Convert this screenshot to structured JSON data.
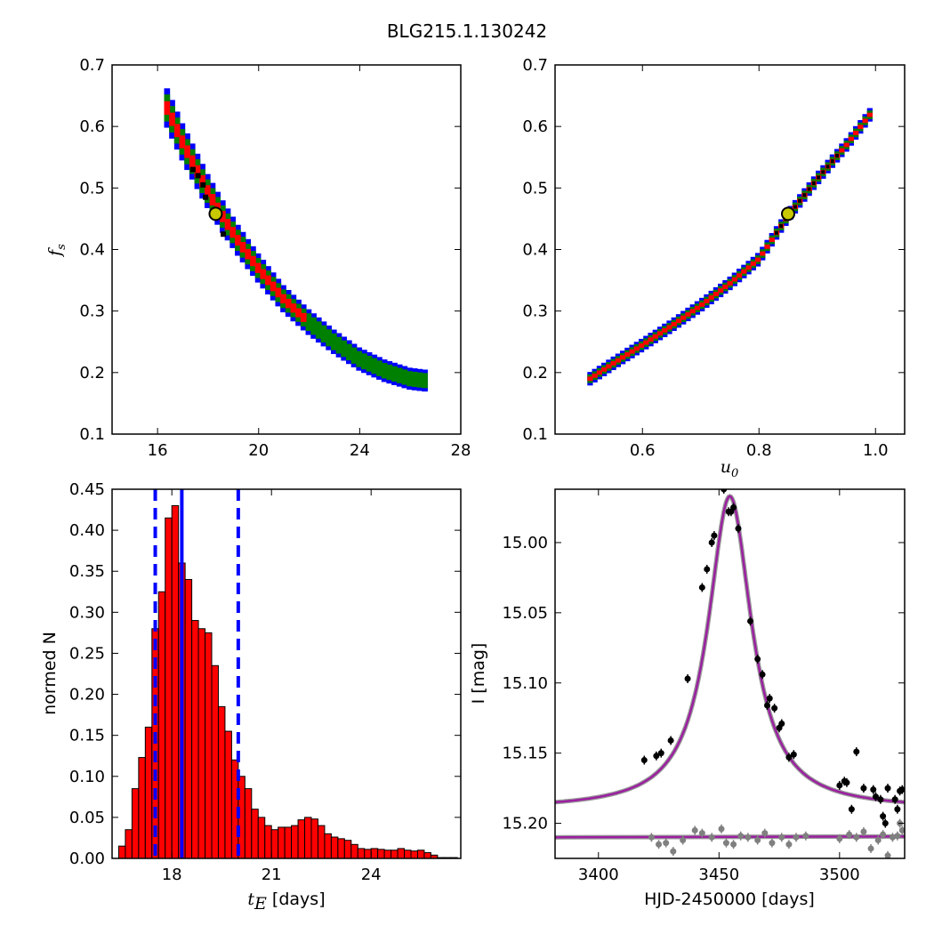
{
  "figure_title": "BLG215.1.130242",
  "colors": {
    "blue": "#0000ff",
    "green": "#008000",
    "red": "#ff0000",
    "black": "#000000",
    "gray": "#808080",
    "purple": "#9b1fa0",
    "marker": "#c8c800"
  },
  "chart_data": [
    {
      "id": "fs_vs_tE",
      "type": "heatmap",
      "xlim": [
        14.2,
        28
      ],
      "ylim": [
        0.1,
        0.7
      ],
      "xticks": [
        "16",
        "20",
        "24",
        "28"
      ],
      "yticks": [
        "0.1",
        "0.2",
        "0.3",
        "0.4",
        "0.5",
        "0.6",
        "0.7"
      ],
      "xlabel": "",
      "ylabel": "f_s",
      "ylabel_base": "f",
      "ylabel_sub": "s",
      "band_center": [
        [
          16.4,
          0.63
        ],
        [
          17.0,
          0.575
        ],
        [
          17.5,
          0.535
        ],
        [
          18.0,
          0.495
        ],
        [
          18.5,
          0.46
        ],
        [
          19.2,
          0.415
        ],
        [
          20.0,
          0.37
        ],
        [
          21.0,
          0.32
        ],
        [
          22.0,
          0.282
        ],
        [
          23.0,
          0.25
        ],
        [
          24.0,
          0.222
        ],
        [
          25.0,
          0.203
        ],
        [
          26.0,
          0.19
        ],
        [
          26.6,
          0.187
        ]
      ],
      "best_fit": {
        "x": 18.3,
        "y": 0.458
      },
      "black_cells": [
        [
          17.4,
          0.53
        ],
        [
          17.6,
          0.52
        ],
        [
          17.8,
          0.505
        ],
        [
          17.9,
          0.485
        ],
        [
          18.6,
          0.425
        ]
      ]
    },
    {
      "id": "fs_vs_u0",
      "type": "heatmap",
      "xlim": [
        0.45,
        1.05
      ],
      "ylim": [
        0.1,
        0.7
      ],
      "xticks": [
        "0.6",
        "0.8",
        "1.0"
      ],
      "yticks": [
        "0.1",
        "0.2",
        "0.3",
        "0.4",
        "0.5",
        "0.6",
        "0.7"
      ],
      "xlabel": "u_0",
      "xlabel_base": "u",
      "xlabel_sub": "0",
      "ylabel": "",
      "band_center": [
        [
          0.51,
          0.19
        ],
        [
          0.55,
          0.215
        ],
        [
          0.6,
          0.245
        ],
        [
          0.65,
          0.276
        ],
        [
          0.7,
          0.309
        ],
        [
          0.75,
          0.345
        ],
        [
          0.8,
          0.385
        ],
        [
          0.85,
          0.455
        ],
        [
          0.9,
          0.515
        ],
        [
          0.95,
          0.57
        ],
        [
          0.995,
          0.625
        ]
      ],
      "best_fit": {
        "x": 0.85,
        "y": 0.458
      }
    },
    {
      "id": "tE_histogram",
      "type": "bar",
      "xlim": [
        16.2,
        26.7
      ],
      "ylim": [
        0,
        0.45
      ],
      "xticks": [
        "18",
        "21",
        "24"
      ],
      "yticks": [
        "0.00",
        "0.05",
        "0.10",
        "0.15",
        "0.20",
        "0.25",
        "0.30",
        "0.35",
        "0.40",
        "0.45"
      ],
      "xlabel_base": "t",
      "xlabel_sub": "E",
      "xlabel_text": " [days]",
      "ylabel": "normed N",
      "bin_start": 16.4,
      "bin_width": 0.2,
      "values": [
        0.015,
        0.035,
        0.085,
        0.123,
        0.16,
        0.28,
        0.325,
        0.415,
        0.43,
        0.36,
        0.34,
        0.29,
        0.28,
        0.275,
        0.235,
        0.185,
        0.155,
        0.12,
        0.1,
        0.085,
        0.06,
        0.05,
        0.04,
        0.035,
        0.038,
        0.038,
        0.04,
        0.047,
        0.05,
        0.048,
        0.04,
        0.03,
        0.026,
        0.024,
        0.022,
        0.017,
        0.012,
        0.011,
        0.012,
        0.011,
        0.01,
        0.01,
        0.012,
        0.01,
        0.009,
        0.01,
        0.007,
        0.004,
        0.001,
        0.001,
        0.001
      ],
      "vlines": [
        {
          "x": 17.5,
          "style": "dashed"
        },
        {
          "x": 18.3,
          "style": "solid"
        },
        {
          "x": 20.0,
          "style": "dashed"
        }
      ]
    },
    {
      "id": "light_curve",
      "type": "scatter",
      "xlim": [
        3382,
        3527
      ],
      "ylim_inverted": [
        15.225,
        14.962
      ],
      "xticks": [
        "3400",
        "3450",
        "3500"
      ],
      "yticks": [
        "15.00",
        "15.05",
        "15.10",
        "15.15",
        "15.20"
      ],
      "xlabel": "HJD-2450000 [days]",
      "ylabel": "I [mag]",
      "model": {
        "t0": 3454.5,
        "peak_mag": 14.967,
        "base_mag": 15.19,
        "width": 11.0
      },
      "baseline_curve_mag": 15.21,
      "points": [
        [
          3419,
          15.155
        ],
        [
          3424,
          15.152
        ],
        [
          3426,
          15.15
        ],
        [
          3430,
          15.141
        ],
        [
          3437,
          15.097
        ],
        [
          3443,
          15.032
        ],
        [
          3445,
          15.019
        ],
        [
          3447,
          15.0
        ],
        [
          3448,
          14.995
        ],
        [
          3452,
          14.962
        ],
        [
          3454,
          14.978
        ],
        [
          3455,
          14.978
        ],
        [
          3456,
          14.975
        ],
        [
          3458,
          14.99
        ],
        [
          3463,
          15.056
        ],
        [
          3466,
          15.083
        ],
        [
          3468,
          15.094
        ],
        [
          3470,
          15.116
        ],
        [
          3471,
          15.111
        ],
        [
          3473,
          15.118
        ],
        [
          3475,
          15.132
        ],
        [
          3476,
          15.129
        ],
        [
          3479,
          15.153
        ],
        [
          3481,
          15.151
        ],
        [
          3500,
          15.173
        ],
        [
          3502,
          15.17
        ],
        [
          3503,
          15.171
        ],
        [
          3505,
          15.19
        ],
        [
          3507,
          15.149
        ],
        [
          3510,
          15.175
        ],
        [
          3514,
          15.176
        ],
        [
          3515,
          15.181
        ],
        [
          3517,
          15.183
        ],
        [
          3518,
          15.195
        ],
        [
          3519,
          15.2
        ],
        [
          3520,
          15.175
        ],
        [
          3523,
          15.183
        ],
        [
          3524,
          15.19
        ],
        [
          3525,
          15.177
        ],
        [
          3526,
          15.176
        ]
      ],
      "residual_points": [
        [
          3422,
          15.21
        ],
        [
          3425,
          15.215
        ],
        [
          3428,
          15.214
        ],
        [
          3431,
          15.22
        ],
        [
          3435,
          15.212
        ],
        [
          3440,
          15.205
        ],
        [
          3443,
          15.207
        ],
        [
          3447,
          15.21
        ],
        [
          3451,
          15.204
        ],
        [
          3453,
          15.214
        ],
        [
          3456,
          15.215
        ],
        [
          3459,
          15.209
        ],
        [
          3462,
          15.21
        ],
        [
          3466,
          15.212
        ],
        [
          3469,
          15.207
        ],
        [
          3472,
          15.214
        ],
        [
          3476,
          15.21
        ],
        [
          3479,
          15.215
        ],
        [
          3482,
          15.21
        ],
        [
          3486,
          15.209
        ],
        [
          3500,
          15.211
        ],
        [
          3504,
          15.208
        ],
        [
          3507,
          15.21
        ],
        [
          3510,
          15.206
        ],
        [
          3513,
          15.218
        ],
        [
          3516,
          15.212
        ],
        [
          3518,
          15.208
        ],
        [
          3520,
          15.223
        ],
        [
          3522,
          15.21
        ],
        [
          3524,
          15.209
        ],
        [
          3525,
          15.2
        ],
        [
          3526,
          15.205
        ]
      ]
    }
  ]
}
